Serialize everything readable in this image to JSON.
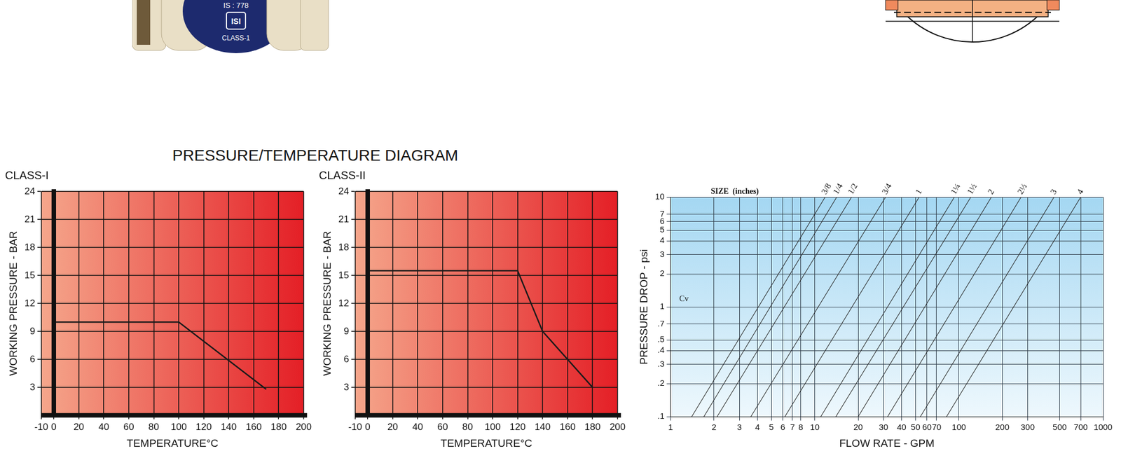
{
  "heading": "PRESSURE/TEMPERATURE DIAGRAM",
  "product_label": [
    "IS : 778",
    "ISI",
    "CLASS-1"
  ],
  "chart_data": [
    {
      "type": "line",
      "title": "CLASS-I",
      "x_label": "TEMPERATURE°C",
      "y_label": "WORKING PRESSURE - BAR",
      "x": [
        0,
        100,
        170
      ],
      "values": [
        10,
        10,
        2.8
      ],
      "color": "#1a1a1a",
      "xlim": [
        -10,
        200
      ],
      "xticks": [
        -10,
        0,
        20,
        40,
        60,
        80,
        100,
        120,
        140,
        160,
        180,
        200
      ],
      "ylim": [
        0,
        24
      ],
      "yticks": [
        3,
        6,
        9,
        12,
        15,
        18,
        21,
        24
      ],
      "grid": true
    },
    {
      "type": "line",
      "title": "CLASS-II",
      "x_label": "TEMPERATURE°C",
      "y_label": "WORKING PRESSURE - BAR",
      "x": [
        0,
        120,
        140,
        180
      ],
      "values": [
        15.5,
        15.5,
        9,
        3
      ],
      "color": "#1a1a1a",
      "xlim": [
        -10,
        200
      ],
      "xticks": [
        -10,
        0,
        20,
        40,
        60,
        80,
        100,
        120,
        140,
        160,
        180,
        200
      ],
      "ylim": [
        0,
        24
      ],
      "yticks": [
        3,
        6,
        9,
        12,
        15,
        18,
        21,
        24
      ],
      "grid": true
    },
    {
      "type": "line",
      "log": true,
      "x_label": "FLOW RATE - GPM",
      "y_label": "PRESSURE DROP - psi",
      "color": "#2b2b2b",
      "grid": true,
      "xlim": [
        1,
        1000
      ],
      "xticks": [
        1,
        2,
        3,
        4,
        5,
        6,
        7,
        8,
        10,
        20,
        30,
        40,
        50,
        60,
        70,
        100,
        200,
        300,
        500,
        700,
        1000
      ],
      "ylim": [
        0.1,
        10
      ],
      "yticks": [
        {
          "value": 0.1,
          "label": ".1"
        },
        {
          "value": 0.2,
          "label": ".2"
        },
        {
          "value": 0.3,
          "label": ".3"
        },
        {
          "value": 0.4,
          "label": ".4"
        },
        {
          "value": 0.5,
          "label": ".5"
        },
        {
          "value": 0.7,
          "label": ".7"
        },
        1,
        2,
        3,
        4,
        5,
        6,
        7,
        10
      ],
      "annotations": [
        {
          "text": "SIZE  (inches)",
          "x": 1.9,
          "y": 10
        },
        {
          "text": "Cv",
          "x": 1.15,
          "y": 1.05
        }
      ],
      "series": [
        {
          "name": "3/8",
          "x": [
            1.4,
            11.8
          ],
          "values": [
            0.1,
            10
          ]
        },
        {
          "name": "1/4",
          "x": [
            1.7,
            14.2
          ],
          "values": [
            0.1,
            10
          ]
        },
        {
          "name": "1/2",
          "x": [
            2.1,
            18
          ],
          "values": [
            0.1,
            10
          ]
        },
        {
          "name": "3/4",
          "x": [
            3.6,
            31
          ],
          "values": [
            0.1,
            10
          ]
        },
        {
          "name": "1",
          "x": [
            6.2,
            53
          ],
          "values": [
            0.1,
            10
          ]
        },
        {
          "name": "1¼",
          "x": [
            11,
            93
          ],
          "values": [
            0.1,
            10
          ]
        },
        {
          "name": "1½",
          "x": [
            14,
            121
          ],
          "values": [
            0.1,
            10
          ]
        },
        {
          "name": "2",
          "x": [
            20,
            168
          ],
          "values": [
            0.1,
            10
          ]
        },
        {
          "name": "2½",
          "x": [
            32,
            270
          ],
          "values": [
            0.1,
            10
          ]
        },
        {
          "name": "3",
          "x": [
            54,
            457
          ],
          "values": [
            0.1,
            10
          ]
        },
        {
          "name": "4",
          "x": [
            82,
            700
          ],
          "values": [
            0.1,
            10
          ]
        }
      ]
    }
  ]
}
